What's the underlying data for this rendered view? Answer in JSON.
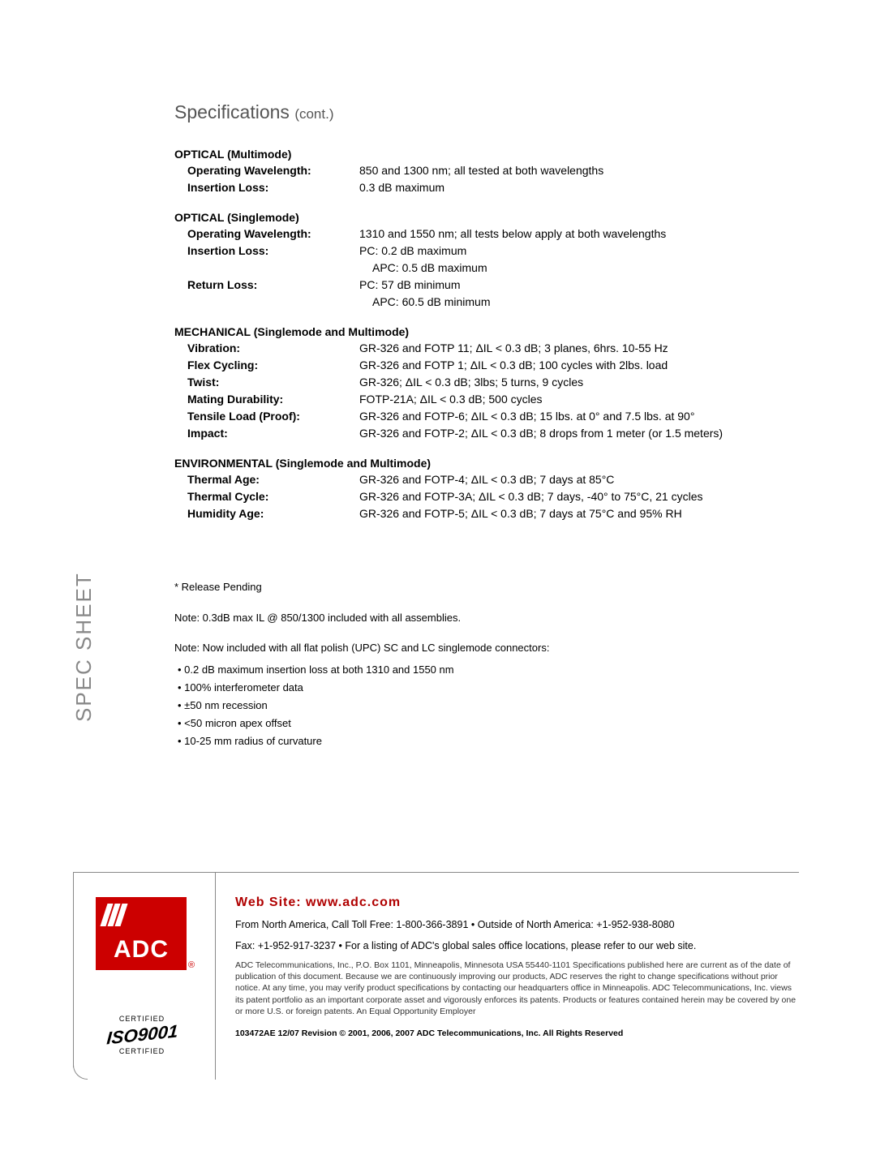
{
  "title": "Specifications",
  "title_cont": "(cont.)",
  "vertical_label": "SPEC SHEET",
  "optical_mm": {
    "heading": "OPTICAL (Multimode)",
    "rows": [
      {
        "label": "Operating Wavelength:",
        "value": "850 and 1300 nm; all tested at both wavelengths"
      },
      {
        "label": "Insertion Loss:",
        "value": "0.3 dB maximum"
      }
    ]
  },
  "optical_sm": {
    "heading": "OPTICAL (Singlemode)",
    "rows": [
      {
        "label": "Operating Wavelength:",
        "value": "1310 and 1550 nm; all tests below apply at both wavelengths"
      },
      {
        "label": "Insertion Loss:",
        "value": "PC:   0.2 dB maximum"
      }
    ],
    "sub1": "APC: 0.5 dB maximum",
    "rows2": [
      {
        "label": "Return Loss:",
        "value": "PC:   57 dB minimum"
      }
    ],
    "sub2": "APC: 60.5 dB minimum"
  },
  "mechanical": {
    "heading": "MECHANICAL (Singlemode and Multimode)",
    "rows": [
      {
        "label": "Vibration:",
        "value": "GR-326 and FOTP 11; ΔIL < 0.3 dB; 3 planes, 6hrs. 10-55 Hz"
      },
      {
        "label": "Flex Cycling:",
        "value": "GR-326 and FOTP 1; ΔIL < 0.3 dB; 100 cycles with 2lbs. load"
      },
      {
        "label": "Twist:",
        "value": "GR-326; ΔIL < 0.3 dB; 3lbs; 5 turns, 9 cycles"
      },
      {
        "label": "Mating Durability:",
        "value": "FOTP-21A; ΔIL < 0.3 dB; 500 cycles"
      },
      {
        "label": "Tensile Load (Proof):",
        "value": "GR-326 and FOTP-6; ΔIL < 0.3 dB; 15 lbs. at 0° and 7.5 lbs. at 90°"
      },
      {
        "label": "Impact:",
        "value": "GR-326 and FOTP-2; ΔIL < 0.3 dB; 8 drops from 1 meter (or 1.5 meters)"
      }
    ]
  },
  "environmental": {
    "heading": "ENVIRONMENTAL (Singlemode and Multimode)",
    "rows": [
      {
        "label": "Thermal Age:",
        "value": "GR-326 and FOTP-4; ΔIL < 0.3 dB; 7 days at 85°C"
      },
      {
        "label": "Thermal Cycle:",
        "value": "GR-326 and FOTP-3A; ΔIL < 0.3 dB; 7 days, -40° to 75°C, 21 cycles"
      },
      {
        "label": "Humidity Age:",
        "value": "GR-326 and FOTP-5; ΔIL < 0.3 dB; 7 days at 75°C and 95% RH"
      }
    ]
  },
  "release_pending": "* Release Pending",
  "note1": "Note: 0.3dB max IL @ 850/1300 included with all assemblies.",
  "note2": "Note: Now included with all flat polish (UPC) SC and LC singlemode connectors:",
  "bullets": [
    "0.2 dB maximum insertion loss at both 1310 and 1550 nm",
    "100% interferometer data",
    "±50 nm recession",
    "<50 micron apex offset",
    "10-25 mm radius of curvature"
  ],
  "footer": {
    "web_title": "Web Site: www.adc.com",
    "line1": "From North America, Call Toll Free: 1-800-366-3891 • Outside of North America: +1-952-938-8080",
    "line2": "Fax: +1-952-917-3237 • For a listing of ADC's global sales office locations, please refer to our web site.",
    "small": "ADC Telecommunications, Inc., P.O. Box 1101, Minneapolis, Minnesota  USA  55440-1101\nSpecifications published here are current as of the date of publication of this document. Because we are continuously improving our products, ADC reserves the right to change specifications without prior notice. At any time, you may verify product specifications by contacting our headquarters office in Minneapolis. ADC Telecommunications, Inc. views its patent portfolio as an important corporate asset and vigorously enforces its patents. Products or features contained herein may be covered by one or more U.S. or foreign patents. An Equal Opportunity Employer",
    "copyright": "103472AE  12/07  Revision  ©  2001, 2006, 2007   ADC Telecommunications, Inc.  All Rights Reserved",
    "logo_text": "ADC",
    "iso_top": "CERTIFIED",
    "iso_num": "ISO9001",
    "iso_bot": "CERTIFIED"
  }
}
